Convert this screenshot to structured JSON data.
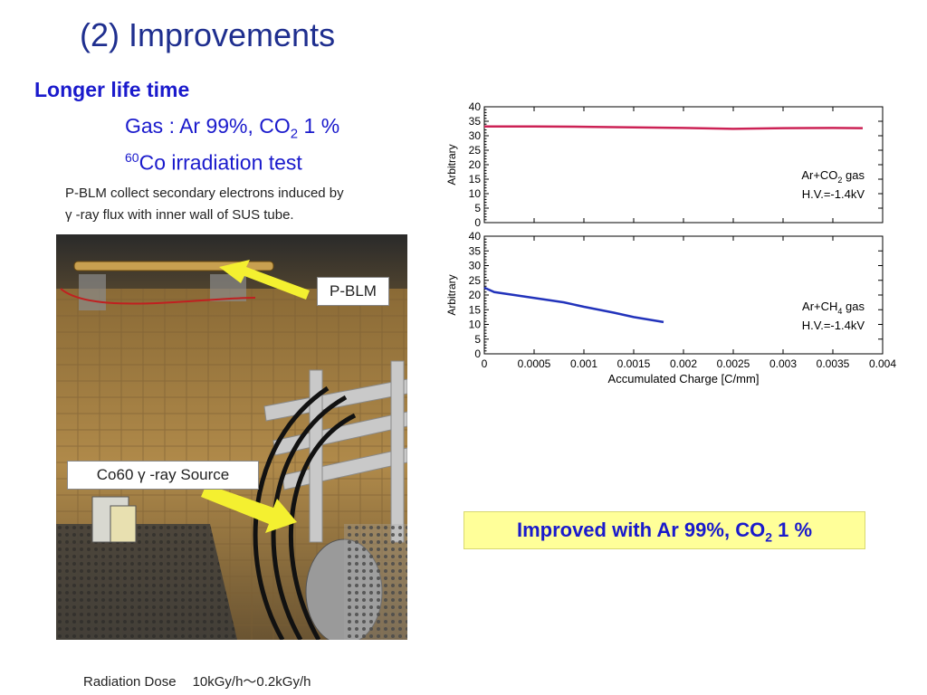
{
  "slide": {
    "title": "(2) Improvements",
    "subhead": "Longer life time",
    "gas_prefix": "Gas : Ar 99%, CO",
    "gas_sub": "2",
    "gas_suffix": " 1 %",
    "co_sup": "60",
    "co_text": "Co irradiation test",
    "note_line1": "P-BLM collect secondary electrons induced by",
    "note_line2": "γ -ray flux with inner wall of SUS tube.",
    "dose_label": "Radiation Dose",
    "dose_value": "10kGy/h〜0.2kGy/h",
    "improved_prefix": "Improved with Ar 99%, CO",
    "improved_sub": "2",
    "improved_suffix": " 1 %"
  },
  "photo": {
    "pblm_label": "P-BLM",
    "source_label": "Co60  γ -ray Source",
    "arrow_color": "#f4f030"
  },
  "chart_data": [
    {
      "type": "line",
      "ylabel": "Arbitrary",
      "xlabel": "",
      "ylim": [
        0,
        40
      ],
      "xlim": [
        0,
        0.004
      ],
      "yticks": [
        "0",
        "5",
        "10",
        "15",
        "20",
        "25",
        "30",
        "35",
        "40"
      ],
      "legend_line1_prefix": "Ar+CO",
      "legend_line1_sub": "2",
      "legend_line1_suffix": " gas",
      "legend_line2": "H.V.=-1.4kV",
      "color": "#cc2255",
      "series": [
        {
          "x": [
            0,
            0.0005,
            0.001,
            0.0015,
            0.002,
            0.0025,
            0.003,
            0.0035,
            0.0038
          ],
          "y": [
            33.2,
            33.2,
            33.1,
            32.9,
            32.7,
            32.4,
            32.6,
            32.7,
            32.6
          ]
        }
      ]
    },
    {
      "type": "line",
      "ylabel": "Arbitrary",
      "xlabel": "Accumulated Charge [C/mm]",
      "ylim": [
        0,
        40
      ],
      "xlim": [
        0,
        0.004
      ],
      "yticks": [
        "0",
        "5",
        "10",
        "15",
        "20",
        "25",
        "30",
        "35",
        "40"
      ],
      "xticks": [
        "0",
        "0.0005",
        "0.001",
        "0.0015",
        "0.002",
        "0.0025",
        "0.003",
        "0.0035",
        "0.004"
      ],
      "legend_line1_prefix": "Ar+CH",
      "legend_line1_sub": "4",
      "legend_line1_suffix": " gas",
      "legend_line2": "H.V.=-1.4kV",
      "color": "#2233bb",
      "series": [
        {
          "x": [
            0,
            0.0001,
            0.0003,
            0.0005,
            0.0008,
            0.001,
            0.0013,
            0.0015,
            0.0018
          ],
          "y": [
            22.5,
            21.0,
            20.0,
            19.0,
            17.5,
            16.0,
            14.0,
            12.5,
            10.8
          ]
        }
      ]
    }
  ]
}
